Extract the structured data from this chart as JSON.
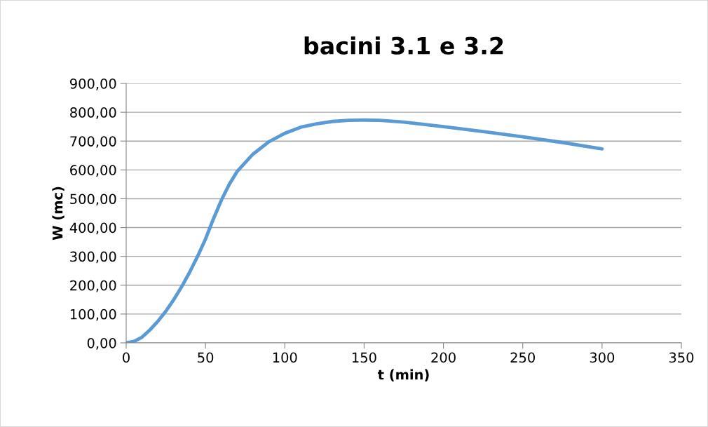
{
  "chart_data": {
    "type": "line",
    "title": "bacini 3.1 e 3.2",
    "xlabel": "t (min)",
    "ylabel": "W (mc)",
    "x": [
      0,
      5,
      10,
      15,
      20,
      25,
      30,
      35,
      40,
      45,
      50,
      55,
      60,
      65,
      70,
      80,
      90,
      100,
      110,
      120,
      130,
      140,
      150,
      160,
      175,
      200,
      225,
      250,
      275,
      300
    ],
    "series": [
      {
        "color": "#5b9bd5",
        "values": [
          0,
          5,
          20,
          45,
          75,
          110,
          150,
          195,
          245,
          300,
          360,
          430,
          495,
          550,
          595,
          655,
          698,
          727,
          748,
          760,
          768,
          772,
          773,
          772,
          766,
          750,
          733,
          715,
          695,
          673
        ]
      }
    ],
    "xlim": [
      0,
      350
    ],
    "xticks": [
      0,
      50,
      100,
      150,
      200,
      250,
      300,
      350
    ],
    "ylim": [
      0,
      900
    ],
    "yticks": [
      {
        "value": 0,
        "label": "0,00"
      },
      {
        "value": 100,
        "label": "100,00"
      },
      {
        "value": 200,
        "label": "200,00"
      },
      {
        "value": 300,
        "label": "300,00"
      },
      {
        "value": 400,
        "label": "400,00"
      },
      {
        "value": 500,
        "label": "500,00"
      },
      {
        "value": 600,
        "label": "600,00"
      },
      {
        "value": 700,
        "label": "700,00"
      },
      {
        "value": 800,
        "label": "800,00"
      },
      {
        "value": 900,
        "label": "900,00"
      }
    ],
    "grid": "y",
    "marker": "none",
    "line_style": "solid",
    "legend": false
  }
}
